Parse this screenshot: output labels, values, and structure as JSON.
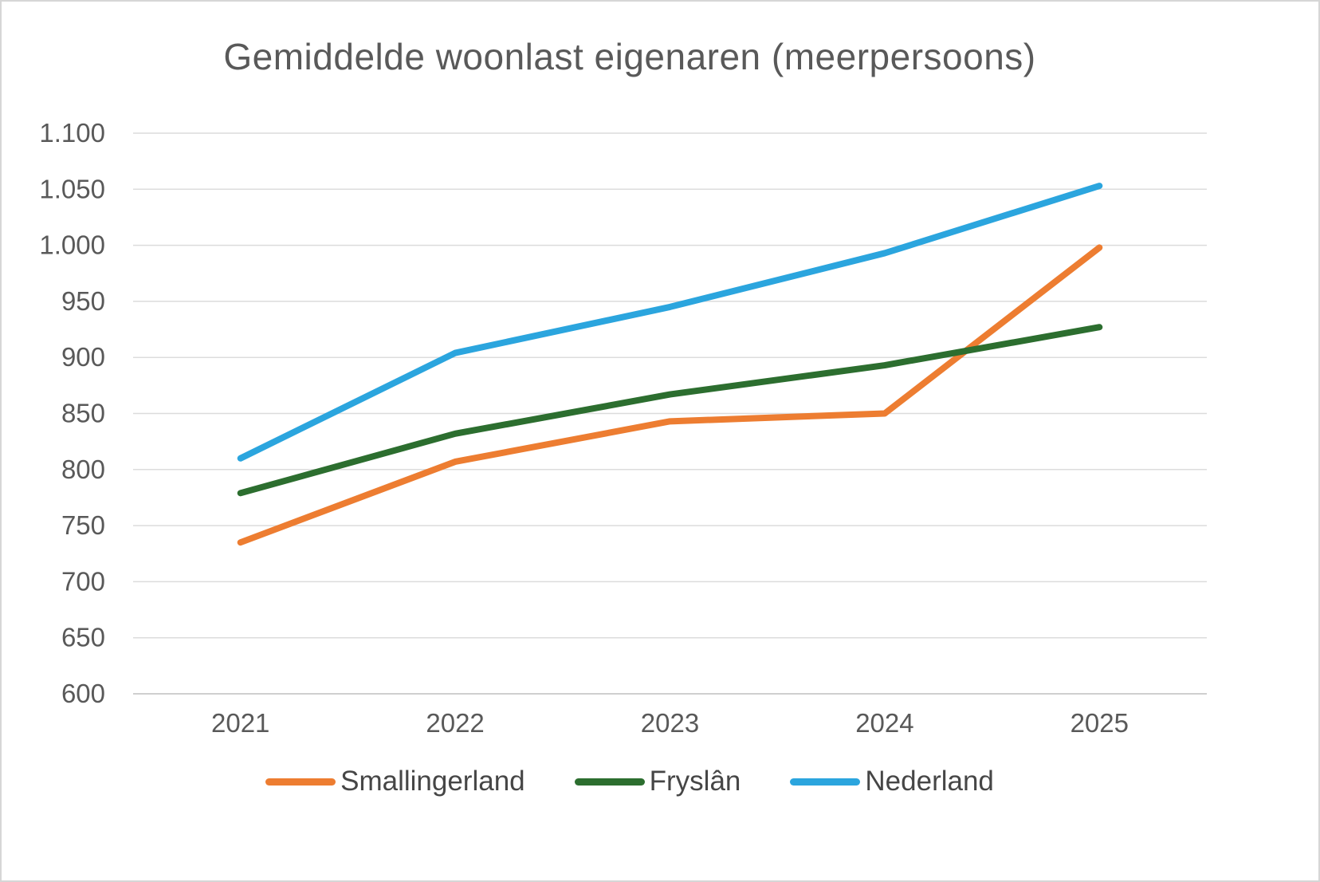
{
  "chart_data": {
    "type": "line",
    "title": "Gemiddelde woonlast eigenaren (meerpersoons)",
    "x": [
      "2021",
      "2022",
      "2023",
      "2024",
      "2025"
    ],
    "series": [
      {
        "name": "Smallingerland",
        "color": "#ED7D31",
        "values": [
          735,
          807,
          843,
          850,
          998
        ]
      },
      {
        "name": "Fryslân",
        "color": "#2C6E2F",
        "values": [
          779,
          832,
          867,
          893,
          927
        ]
      },
      {
        "name": "Nederland",
        "color": "#2BA5DE",
        "values": [
          810,
          904,
          945,
          993,
          1053
        ]
      }
    ],
    "xlabel": "",
    "ylabel": "",
    "ylim": [
      600,
      1100
    ],
    "ytick_step": 50,
    "ytick_labels": [
      "600",
      "650",
      "700",
      "750",
      "800",
      "850",
      "900",
      "950",
      "1.000",
      "1.050",
      "1.100"
    ],
    "grid": true,
    "legend_position": "bottom",
    "grid_color": "#dcdcdc",
    "axis_color": "#bfbfbf",
    "text_color": "#595959"
  }
}
